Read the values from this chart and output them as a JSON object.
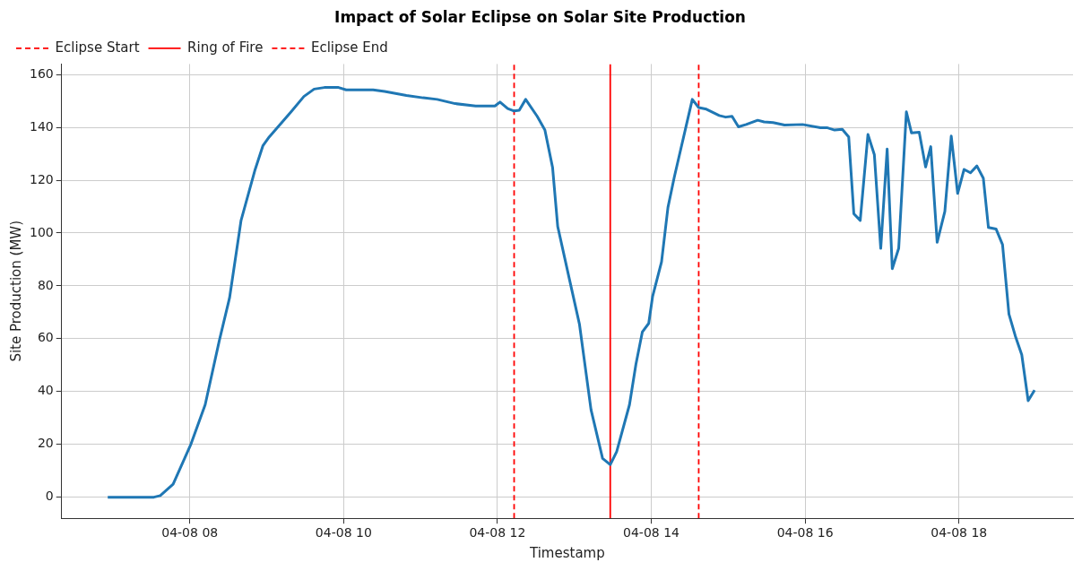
{
  "chart_data": {
    "type": "line",
    "title": "Impact of Solar Eclipse on Solar Site Production",
    "xlabel": "Timestamp",
    "ylabel": "Site Production (MW)",
    "xlim": [
      "--04-08T06:20",
      "--04-08T19:29"
    ],
    "ylim": [
      -8,
      164
    ],
    "xticks": [
      {
        "value": "--04-08T08:00",
        "label": "04-08 08"
      },
      {
        "value": "--04-08T10:00",
        "label": "04-08 10"
      },
      {
        "value": "--04-08T12:00",
        "label": "04-08 12"
      },
      {
        "value": "--04-08T14:00",
        "label": "04-08 14"
      },
      {
        "value": "--04-08T16:00",
        "label": "04-08 16"
      },
      {
        "value": "--04-08T18:00",
        "label": "04-08 18"
      }
    ],
    "yticks": [
      0,
      20,
      40,
      60,
      80,
      100,
      120,
      140,
      160
    ],
    "grid": true,
    "legend": "top left",
    "marker": "none",
    "line_style": "solid",
    "series": [
      {
        "color": "#1f77b4",
        "x": [
          "--04-08T06:56",
          "--04-08T07:32",
          "--04-08T07:37",
          "--04-08T07:47",
          "--04-08T08:01",
          "--04-08T08:12",
          "--04-08T08:23",
          "--04-08T08:31",
          "--04-08T08:40",
          "--04-08T08:51",
          "--04-08T08:57",
          "--04-08T09:02",
          "--04-08T09:19",
          "--04-08T09:29",
          "--04-08T09:37",
          "--04-08T09:45",
          "--04-08T09:56",
          "--04-08T10:02",
          "--04-08T10:23",
          "--04-08T10:32",
          "--04-08T10:49",
          "--04-08T11:02",
          "--04-08T11:13",
          "--04-08T11:27",
          "--04-08T11:43",
          "--04-08T11:58",
          "--04-08T12:02",
          "--04-08T12:08",
          "--04-08T12:13",
          "--04-08T12:17",
          "--04-08T12:22",
          "--04-08T12:31",
          "--04-08T12:37",
          "--04-08T12:43",
          "--04-08T12:47",
          "--04-08T12:56",
          "--04-08T13:04",
          "--04-08T13:13",
          "--04-08T13:22",
          "--04-08T13:28",
          "--04-08T13:33",
          "--04-08T13:43",
          "--04-08T13:48",
          "--04-08T13:53",
          "--04-08T13:58",
          "--04-08T14:01",
          "--04-08T14:08",
          "--04-08T14:13",
          "--04-08T14:18",
          "--04-08T14:32",
          "--04-08T14:37",
          "--04-08T14:43",
          "--04-08T14:53",
          "--04-08T14:58",
          "--04-08T15:03",
          "--04-08T15:08",
          "--04-08T15:14",
          "--04-08T15:23",
          "--04-08T15:28",
          "--04-08T15:35",
          "--04-08T15:44",
          "--04-08T15:58",
          "--04-08T16:12",
          "--04-08T16:17",
          "--04-08T16:23",
          "--04-08T16:29",
          "--04-08T16:34",
          "--04-08T16:38",
          "--04-08T16:43",
          "--04-08T16:49",
          "--04-08T16:54",
          "--04-08T16:59",
          "--04-08T17:04",
          "--04-08T17:08",
          "--04-08T17:13",
          "--04-08T17:19",
          "--04-08T17:23",
          "--04-08T17:29",
          "--04-08T17:34",
          "--04-08T17:38",
          "--04-08T17:43",
          "--04-08T17:49",
          "--04-08T17:54",
          "--04-08T17:59",
          "--04-08T18:04",
          "--04-08T18:09",
          "--04-08T18:14",
          "--04-08T18:19",
          "--04-08T18:23",
          "--04-08T18:29",
          "--04-08T18:34",
          "--04-08T18:39",
          "--04-08T18:44",
          "--04-08T18:49",
          "--04-08T18:54",
          "--04-08T18:59"
        ],
        "values": [
          0,
          0,
          0.6,
          4.9,
          20.2,
          35,
          59.2,
          75.4,
          104.8,
          124.1,
          133,
          136.4,
          145.9,
          151.7,
          154.5,
          155.1,
          155.1,
          154.2,
          154.2,
          153.6,
          152.1,
          151.2,
          150.6,
          149,
          148.1,
          148.1,
          149.6,
          147.1,
          146.2,
          146.5,
          150.6,
          144.2,
          139,
          124.8,
          102.5,
          82.8,
          65.4,
          33.1,
          14.7,
          12.3,
          17.2,
          35,
          50.3,
          62.5,
          65.8,
          75.9,
          89.1,
          109.7,
          121.3,
          150.6,
          147.5,
          146.9,
          144.5,
          143.9,
          144.2,
          140.2,
          141.1,
          142.7,
          142.1,
          141.8,
          140.9,
          141.1,
          139.9,
          139.9,
          139,
          139.3,
          136.4,
          107.3,
          104.8,
          137.3,
          129.7,
          94.2,
          131.8,
          86.5,
          94.2,
          145.9,
          137.9,
          138.2,
          125,
          132.7,
          96.5,
          108.2,
          136.7,
          115,
          124.1,
          122.8,
          125.4,
          120.8,
          102.1,
          101.5,
          95.6,
          69.3,
          61,
          53.9,
          36.5,
          40.5
        ]
      }
    ],
    "ref_lines": [
      {
        "axis": "x",
        "value": "--04-08T12:13",
        "label": "Eclipse Start",
        "color": "#ff0000",
        "line_style": "dashed"
      },
      {
        "axis": "x",
        "value": "--04-08T13:28",
        "label": "Ring of Fire",
        "color": "#ff0000",
        "line_style": "solid"
      },
      {
        "axis": "x",
        "value": "--04-08T14:37",
        "label": "Eclipse End",
        "color": "#ff0000",
        "line_style": "dashed"
      }
    ]
  }
}
